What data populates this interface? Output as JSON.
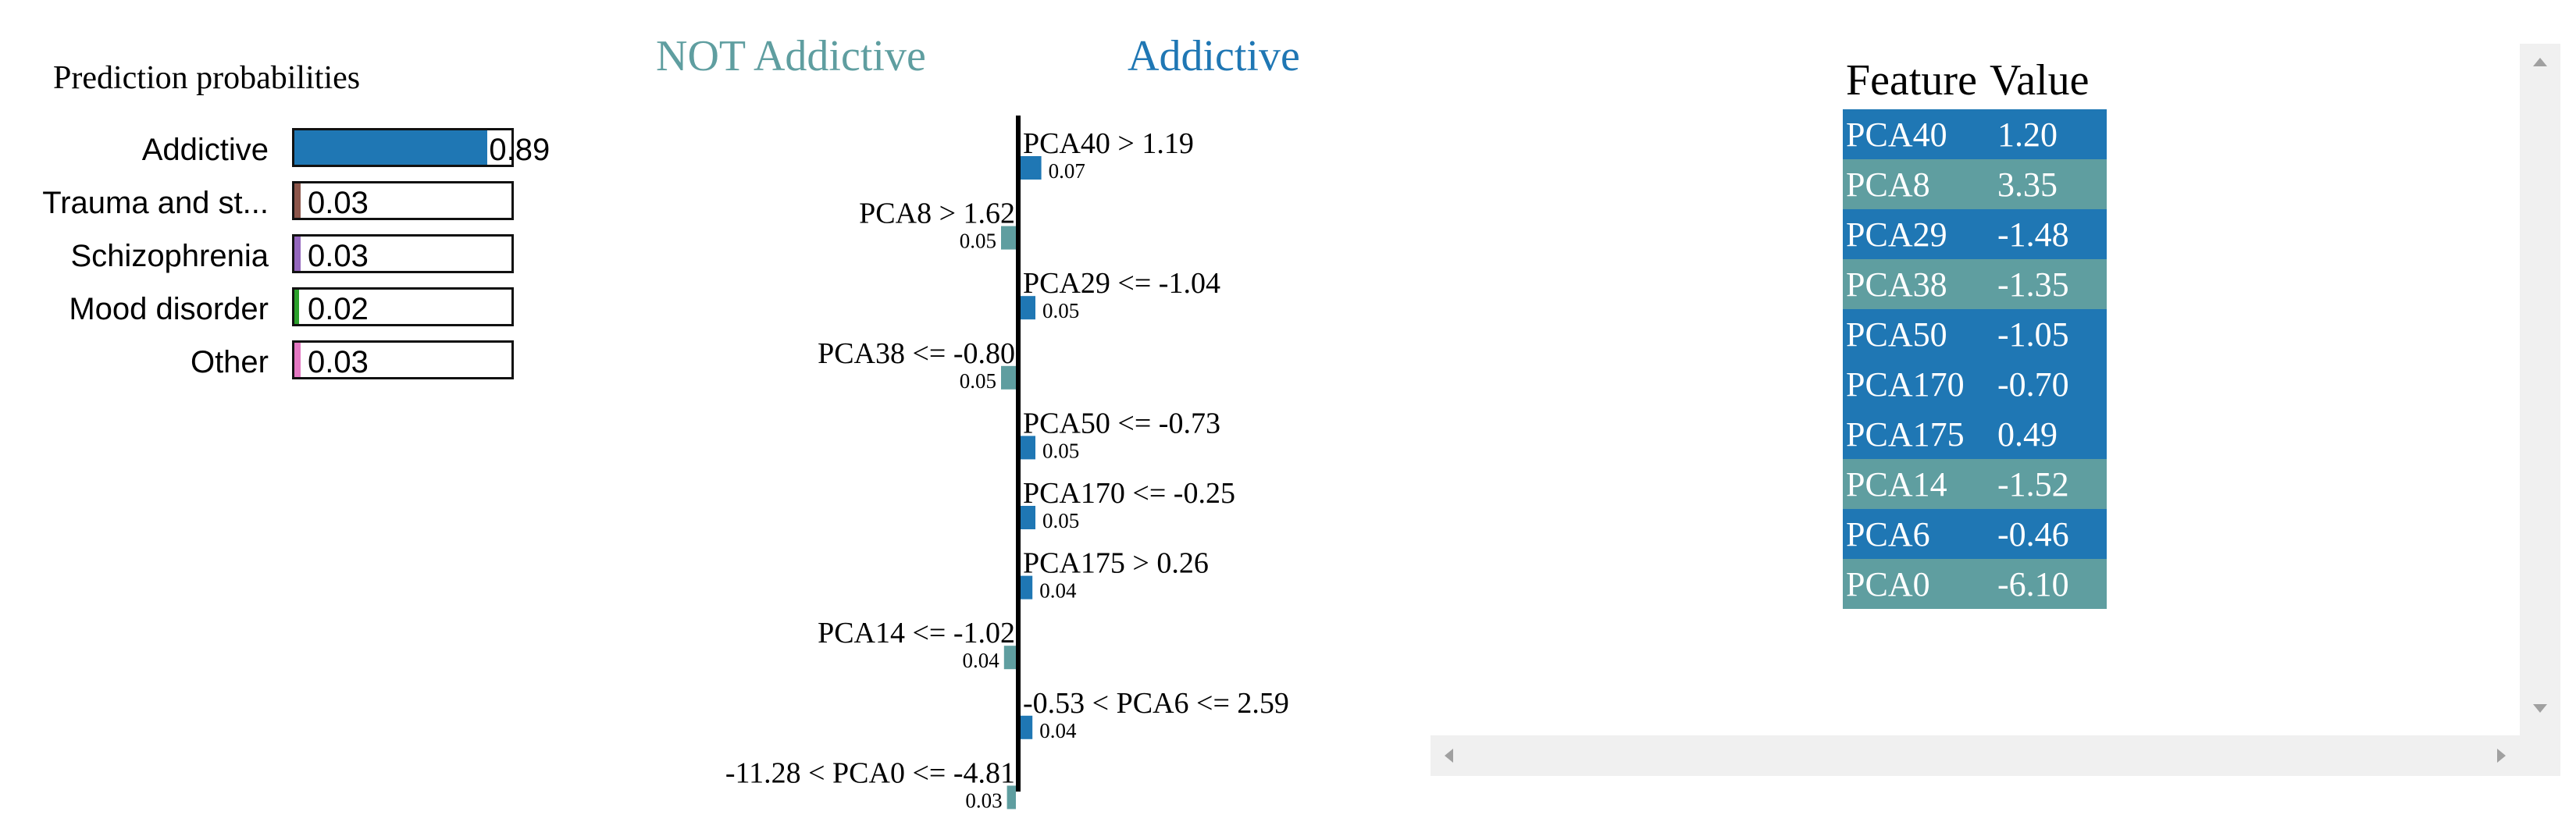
{
  "proba": {
    "title": "Prediction probabilities",
    "items": [
      {
        "label": "Addictive",
        "value": 0.89,
        "value_text": "0.89",
        "color": "#1f77b4"
      },
      {
        "label": "Trauma and st...",
        "value": 0.03,
        "value_text": "0.03",
        "color": "#8c564b"
      },
      {
        "label": "Schizophrenia",
        "value": 0.03,
        "value_text": "0.03",
        "color": "#9467bd"
      },
      {
        "label": "Mood disorder",
        "value": 0.02,
        "value_text": "0.02",
        "color": "#2ca02c"
      },
      {
        "label": "Other",
        "value": 0.03,
        "value_text": "0.03",
        "color": "#e377c2"
      }
    ]
  },
  "explanation": {
    "neg_label": "NOT Addictive",
    "pos_label": "Addictive",
    "neg_color": "#5f9ea0",
    "pos_color": "#1f77b4"
  },
  "chart_data": {
    "type": "bar",
    "categories": [
      "PCA40 > 1.19",
      "PCA8 > 1.62",
      "PCA29 <= -1.04",
      "PCA38 <= -0.80",
      "PCA50 <= -0.73",
      "PCA170 <= -0.25",
      "PCA175 > 0.26",
      "PCA14 <= -1.02",
      "-0.53 < PCA6 <= 2.59",
      "-11.28 < PCA0 <= -4.81"
    ],
    "values": [
      0.07,
      -0.05,
      0.05,
      -0.05,
      0.05,
      0.05,
      0.04,
      -0.04,
      0.04,
      -0.03
    ],
    "value_labels": [
      "0.07",
      "0.05",
      "0.05",
      "0.05",
      "0.05",
      "0.05",
      "0.04",
      "0.04",
      "0.04",
      "0.03"
    ]
  },
  "features": {
    "headers": [
      "Feature",
      "Value"
    ],
    "rows": [
      {
        "name": "PCA40",
        "value": "1.20",
        "color": "#1f77b4"
      },
      {
        "name": "PCA8",
        "value": "3.35",
        "color": "#5f9ea0"
      },
      {
        "name": "PCA29",
        "value": "-1.48",
        "color": "#1f77b4"
      },
      {
        "name": "PCA38",
        "value": "-1.35",
        "color": "#5f9ea0"
      },
      {
        "name": "PCA50",
        "value": "-1.05",
        "color": "#1f77b4"
      },
      {
        "name": "PCA170",
        "value": "-0.70",
        "color": "#1f77b4"
      },
      {
        "name": "PCA175",
        "value": "0.49",
        "color": "#1f77b4"
      },
      {
        "name": "PCA14",
        "value": "-1.52",
        "color": "#5f9ea0"
      },
      {
        "name": "PCA6",
        "value": "-0.46",
        "color": "#1f77b4"
      },
      {
        "name": "PCA0",
        "value": "-6.10",
        "color": "#5f9ea0"
      }
    ]
  }
}
